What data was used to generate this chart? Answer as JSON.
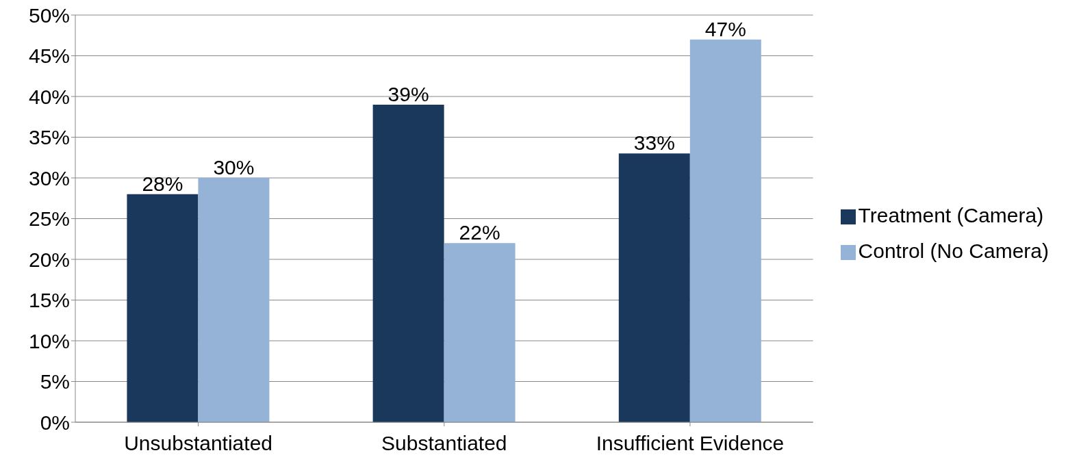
{
  "chart_data": {
    "type": "bar",
    "categories": [
      "Unsubstantiated",
      "Substantiated",
      "Insufficient Evidence"
    ],
    "series": [
      {
        "name": "Treatment (Camera)",
        "color": "#1a375c",
        "values": [
          28,
          39,
          33
        ],
        "value_labels": [
          "28%",
          "39%",
          "33%"
        ]
      },
      {
        "name": "Control (No Camera)",
        "color": "#95b3d7",
        "values": [
          30,
          22,
          47
        ],
        "value_labels": [
          "30%",
          "22%",
          "47%"
        ]
      }
    ],
    "ylim": [
      0,
      50
    ],
    "yticks": [
      {
        "value": 0,
        "label": "0%"
      },
      {
        "value": 5,
        "label": "5%"
      },
      {
        "value": 10,
        "label": "10%"
      },
      {
        "value": 15,
        "label": "15%"
      },
      {
        "value": 20,
        "label": "20%"
      },
      {
        "value": 25,
        "label": "25%"
      },
      {
        "value": 30,
        "label": "30%"
      },
      {
        "value": 35,
        "label": "35%"
      },
      {
        "value": 40,
        "label": "40%"
      },
      {
        "value": 45,
        "label": "45%"
      },
      {
        "value": 50,
        "label": "50%"
      }
    ],
    "grid": "y",
    "legend": "right"
  }
}
